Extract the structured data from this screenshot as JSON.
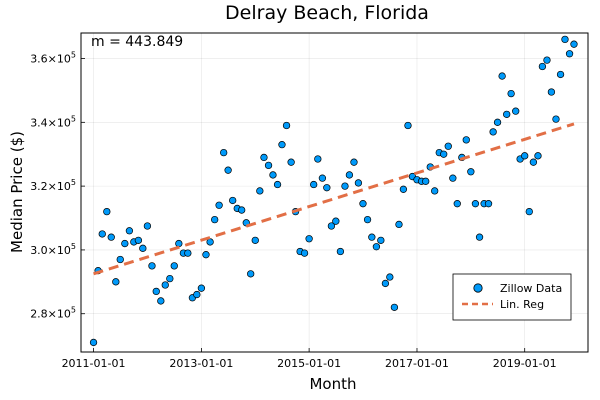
{
  "chart_data": {
    "type": "scatter",
    "title": "Delray Beach, Florida",
    "xlabel": "Month",
    "ylabel": "Median Price ($)",
    "annotation": "m = 443.849",
    "x_start": "2011-01-01",
    "x_end": "2019-12-01",
    "xlim": [
      "2010-10-08",
      "2020-03-05"
    ],
    "ylim": [
      268000,
      368000
    ],
    "grid": true,
    "legend_position": "bottom-right",
    "x_ticks": [
      "2011-01-01",
      "2013-01-01",
      "2015-01-01",
      "2017-01-01",
      "2019-01-01"
    ],
    "y_ticks": [
      {
        "value": 280000,
        "base": "2.8×10",
        "exp": "5"
      },
      {
        "value": 300000,
        "base": "3.0×10",
        "exp": "5"
      },
      {
        "value": 320000,
        "base": "3.2×10",
        "exp": "5"
      },
      {
        "value": 340000,
        "base": "3.4×10",
        "exp": "5"
      },
      {
        "value": 360000,
        "base": "3.6×10",
        "exp": "5"
      }
    ],
    "series": [
      {
        "name": "Zillow Data",
        "kind": "scatter",
        "color": "#009AFA",
        "x": [
          "2011-01-01",
          "2011-02-01",
          "2011-03-01",
          "2011-04-01",
          "2011-05-01",
          "2011-06-01",
          "2011-07-01",
          "2011-08-01",
          "2011-09-01",
          "2011-10-01",
          "2011-11-01",
          "2011-12-01",
          "2012-01-01",
          "2012-02-01",
          "2012-03-01",
          "2012-04-01",
          "2012-05-01",
          "2012-06-01",
          "2012-07-01",
          "2012-08-01",
          "2012-09-01",
          "2012-10-01",
          "2012-11-01",
          "2012-12-01",
          "2013-01-01",
          "2013-02-01",
          "2013-03-01",
          "2013-04-01",
          "2013-05-01",
          "2013-06-01",
          "2013-07-01",
          "2013-08-01",
          "2013-09-01",
          "2013-10-01",
          "2013-11-01",
          "2013-12-01",
          "2014-01-01",
          "2014-02-01",
          "2014-03-01",
          "2014-04-01",
          "2014-05-01",
          "2014-06-01",
          "2014-07-01",
          "2014-08-01",
          "2014-09-01",
          "2014-10-01",
          "2014-11-01",
          "2014-12-01",
          "2015-01-01",
          "2015-02-01",
          "2015-03-01",
          "2015-04-01",
          "2015-05-01",
          "2015-06-01",
          "2015-07-01",
          "2015-08-01",
          "2015-09-01",
          "2015-10-01",
          "2015-11-01",
          "2015-12-01",
          "2016-01-01",
          "2016-02-01",
          "2016-03-01",
          "2016-04-01",
          "2016-05-01",
          "2016-06-01",
          "2016-07-01",
          "2016-08-01",
          "2016-09-01",
          "2016-10-01",
          "2016-11-01",
          "2016-12-01",
          "2017-01-01",
          "2017-02-01",
          "2017-03-01",
          "2017-04-01",
          "2017-05-01",
          "2017-06-01",
          "2017-07-01",
          "2017-08-01",
          "2017-09-01",
          "2017-10-01",
          "2017-11-01",
          "2017-12-01",
          "2018-01-01",
          "2018-02-01",
          "2018-03-01",
          "2018-04-01",
          "2018-05-01",
          "2018-06-01",
          "2018-07-01",
          "2018-08-01",
          "2018-09-01",
          "2018-10-01",
          "2018-11-01",
          "2018-12-01",
          "2019-01-01",
          "2019-02-01",
          "2019-03-01",
          "2019-04-01",
          "2019-05-01",
          "2019-06-01",
          "2019-07-01",
          "2019-08-01",
          "2019-09-01",
          "2019-10-01",
          "2019-11-01",
          "2019-12-01"
        ],
        "y": [
          271000,
          293500,
          305000,
          312000,
          304000,
          290000,
          297000,
          302000,
          306000,
          302500,
          303000,
          300500,
          307500,
          295000,
          287000,
          284000,
          289000,
          291000,
          295000,
          302000,
          299000,
          299000,
          285000,
          286000,
          288000,
          298500,
          302500,
          309500,
          314000,
          330500,
          325000,
          315500,
          313000,
          312500,
          308500,
          292500,
          303000,
          318500,
          329000,
          326500,
          323500,
          320500,
          333000,
          339000,
          327500,
          312000,
          299500,
          299000,
          303500,
          320500,
          328500,
          322500,
          319500,
          307500,
          309000,
          299500,
          320000,
          323500,
          327500,
          321000,
          314500,
          309500,
          304000,
          301000,
          303000,
          289500,
          291500,
          282000,
          308000,
          319000,
          339000,
          323000,
          322000,
          321500,
          321500,
          326000,
          318500,
          330500,
          330000,
          332500,
          322500,
          314500,
          329000,
          334500,
          324500,
          314500,
          304000,
          314500,
          314500,
          337000,
          340000,
          354500,
          342500,
          349000,
          343500,
          328500,
          329500,
          312000,
          327500,
          329500,
          357500,
          359500,
          349500,
          341000,
          355000,
          366000,
          361500,
          364500
        ]
      },
      {
        "name": "Lin. Reg",
        "kind": "line",
        "color": "#E26F46",
        "dash": true,
        "x": [
          "2011-01-01",
          "2019-12-01"
        ],
        "y": [
          292500,
          339500
        ]
      }
    ]
  }
}
